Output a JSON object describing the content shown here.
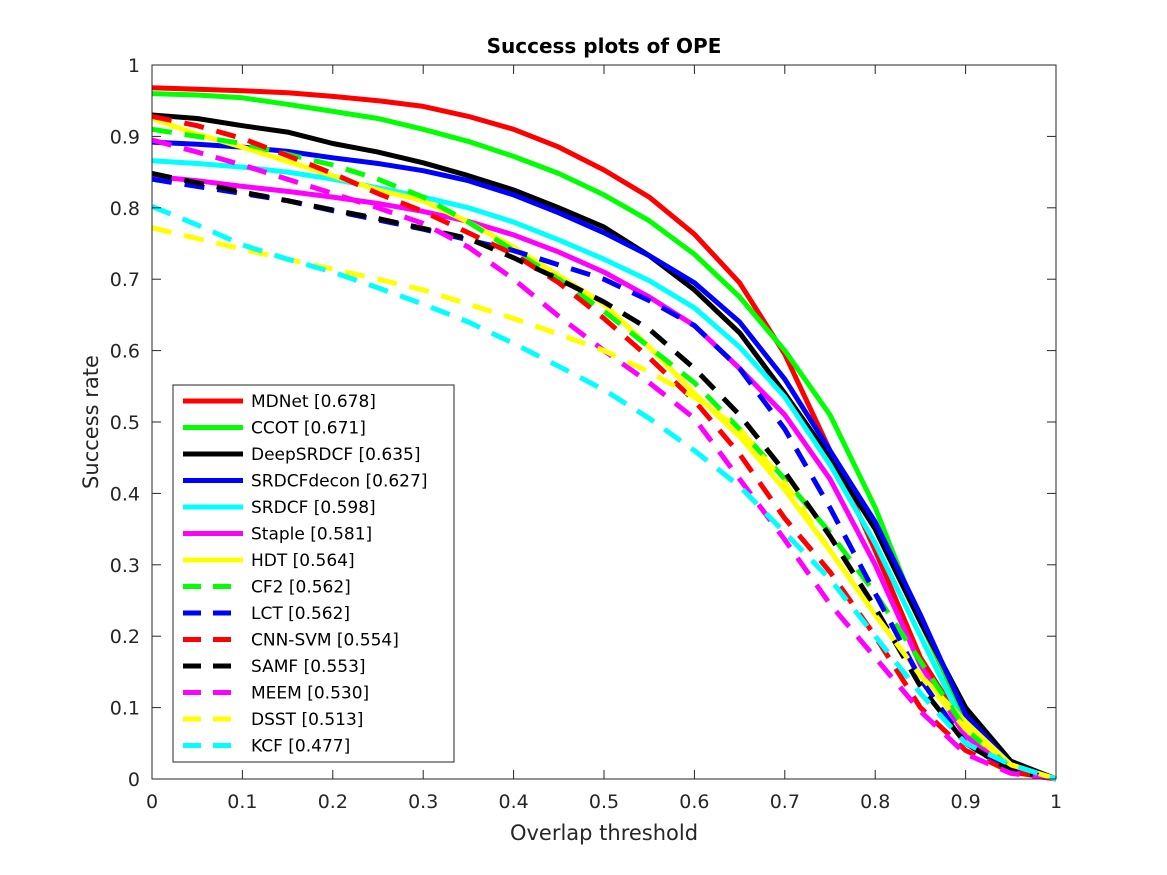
{
  "chart_data": {
    "type": "line",
    "title": "Success plots of OPE",
    "xlabel": "Overlap threshold",
    "ylabel": "Success rate",
    "xlim": [
      0,
      1
    ],
    "ylim": [
      0,
      1
    ],
    "xticks": [
      0,
      0.1,
      0.2,
      0.3,
      0.4,
      0.5,
      0.6,
      0.7,
      0.8,
      0.9,
      1
    ],
    "xtick_labels": [
      "0",
      "0.1",
      "0.2",
      "0.3",
      "0.4",
      "0.5",
      "0.6",
      "0.7",
      "0.8",
      "0.9",
      "1"
    ],
    "yticks": [
      0,
      0.1,
      0.2,
      0.3,
      0.4,
      0.5,
      0.6,
      0.7,
      0.8,
      0.9,
      1
    ],
    "ytick_labels": [
      "0",
      "0.1",
      "0.2",
      "0.3",
      "0.4",
      "0.5",
      "0.6",
      "0.7",
      "0.8",
      "0.9",
      "1"
    ],
    "grid": false,
    "legend_position": "bottom-left",
    "x": [
      0,
      0.05,
      0.1,
      0.15,
      0.2,
      0.25,
      0.3,
      0.35,
      0.4,
      0.45,
      0.5,
      0.55,
      0.6,
      0.65,
      0.7,
      0.75,
      0.8,
      0.85,
      0.9,
      0.95,
      1
    ],
    "series": [
      {
        "name": "MDNet [0.678]",
        "color": "#ff0000",
        "dashed": false,
        "values": [
          0.968,
          0.966,
          0.964,
          0.961,
          0.956,
          0.95,
          0.942,
          0.928,
          0.91,
          0.885,
          0.853,
          0.815,
          0.763,
          0.695,
          0.595,
          0.46,
          0.32,
          0.17,
          0.07,
          0.02,
          0.0
        ]
      },
      {
        "name": "CCOT [0.671]",
        "color": "#00ff00",
        "dashed": false,
        "values": [
          0.96,
          0.958,
          0.954,
          0.945,
          0.935,
          0.925,
          0.91,
          0.893,
          0.872,
          0.848,
          0.818,
          0.782,
          0.735,
          0.675,
          0.6,
          0.51,
          0.38,
          0.22,
          0.085,
          0.02,
          0.0
        ]
      },
      {
        "name": "DeepSRDCF [0.635]",
        "color": "#000000",
        "dashed": false,
        "values": [
          0.93,
          0.925,
          0.915,
          0.906,
          0.89,
          0.878,
          0.863,
          0.845,
          0.825,
          0.8,
          0.773,
          0.733,
          0.685,
          0.625,
          0.54,
          0.45,
          0.35,
          0.22,
          0.1,
          0.025,
          0.0
        ]
      },
      {
        "name": "SRDCFdecon [0.627]",
        "color": "#0000ff",
        "dashed": false,
        "values": [
          0.892,
          0.889,
          0.885,
          0.879,
          0.87,
          0.862,
          0.852,
          0.838,
          0.818,
          0.793,
          0.765,
          0.733,
          0.695,
          0.64,
          0.56,
          0.46,
          0.36,
          0.23,
          0.09,
          0.02,
          0.0
        ]
      },
      {
        "name": "SRDCF [0.598]",
        "color": "#00ffff",
        "dashed": false,
        "values": [
          0.866,
          0.862,
          0.857,
          0.85,
          0.84,
          0.828,
          0.815,
          0.8,
          0.78,
          0.755,
          0.728,
          0.698,
          0.66,
          0.605,
          0.535,
          0.44,
          0.33,
          0.2,
          0.07,
          0.018,
          0.0
        ]
      },
      {
        "name": "Staple [0.581]",
        "color": "#ff00ff",
        "dashed": false,
        "values": [
          0.844,
          0.838,
          0.83,
          0.823,
          0.815,
          0.806,
          0.795,
          0.781,
          0.762,
          0.738,
          0.71,
          0.675,
          0.635,
          0.575,
          0.51,
          0.42,
          0.3,
          0.16,
          0.06,
          0.015,
          0.0
        ]
      },
      {
        "name": "HDT [0.564]",
        "color": "#ffff00",
        "dashed": false,
        "values": [
          0.925,
          0.903,
          0.885,
          0.865,
          0.845,
          0.825,
          0.81,
          0.78,
          0.745,
          0.705,
          0.665,
          0.605,
          0.54,
          0.48,
          0.405,
          0.32,
          0.23,
          0.145,
          0.08,
          0.02,
          0.0
        ]
      },
      {
        "name": "CF2 [0.562]",
        "color": "#00ff00",
        "dashed": true,
        "values": [
          0.91,
          0.9,
          0.89,
          0.875,
          0.86,
          0.84,
          0.815,
          0.78,
          0.74,
          0.7,
          0.655,
          0.605,
          0.555,
          0.49,
          0.42,
          0.345,
          0.26,
          0.165,
          0.07,
          0.015,
          0.0
        ]
      },
      {
        "name": "LCT [0.562]",
        "color": "#0000ff",
        "dashed": true,
        "values": [
          0.84,
          0.83,
          0.82,
          0.81,
          0.796,
          0.783,
          0.77,
          0.755,
          0.74,
          0.72,
          0.7,
          0.67,
          0.635,
          0.575,
          0.49,
          0.38,
          0.26,
          0.14,
          0.05,
          0.012,
          0.0
        ]
      },
      {
        "name": "CNN-SVM [0.554]",
        "color": "#ff0000",
        "dashed": true,
        "values": [
          0.928,
          0.915,
          0.897,
          0.873,
          0.848,
          0.82,
          0.795,
          0.765,
          0.735,
          0.695,
          0.645,
          0.59,
          0.53,
          0.455,
          0.365,
          0.29,
          0.2,
          0.1,
          0.04,
          0.01,
          0.0
        ]
      },
      {
        "name": "SAMF [0.553]",
        "color": "#000000",
        "dashed": true,
        "values": [
          0.848,
          0.835,
          0.822,
          0.81,
          0.797,
          0.785,
          0.771,
          0.757,
          0.73,
          0.7,
          0.668,
          0.63,
          0.575,
          0.51,
          0.43,
          0.34,
          0.24,
          0.13,
          0.05,
          0.012,
          0.0
        ]
      },
      {
        "name": "MEEM [0.530]",
        "color": "#ff00ff",
        "dashed": true,
        "values": [
          0.895,
          0.878,
          0.86,
          0.84,
          0.82,
          0.8,
          0.778,
          0.745,
          0.7,
          0.648,
          0.6,
          0.555,
          0.505,
          0.42,
          0.335,
          0.245,
          0.17,
          0.095,
          0.035,
          0.008,
          0.0
        ]
      },
      {
        "name": "DSST [0.513]",
        "color": "#ffff00",
        "dashed": true,
        "values": [
          0.772,
          0.757,
          0.742,
          0.728,
          0.714,
          0.7,
          0.685,
          0.665,
          0.645,
          0.623,
          0.6,
          0.57,
          0.535,
          0.49,
          0.415,
          0.32,
          0.23,
          0.145,
          0.07,
          0.02,
          0.0
        ]
      },
      {
        "name": "KCF [0.477]",
        "color": "#00ffff",
        "dashed": true,
        "values": [
          0.802,
          0.776,
          0.748,
          0.728,
          0.71,
          0.688,
          0.665,
          0.64,
          0.61,
          0.578,
          0.545,
          0.505,
          0.46,
          0.41,
          0.345,
          0.28,
          0.2,
          0.12,
          0.05,
          0.02,
          0.0
        ]
      }
    ]
  }
}
